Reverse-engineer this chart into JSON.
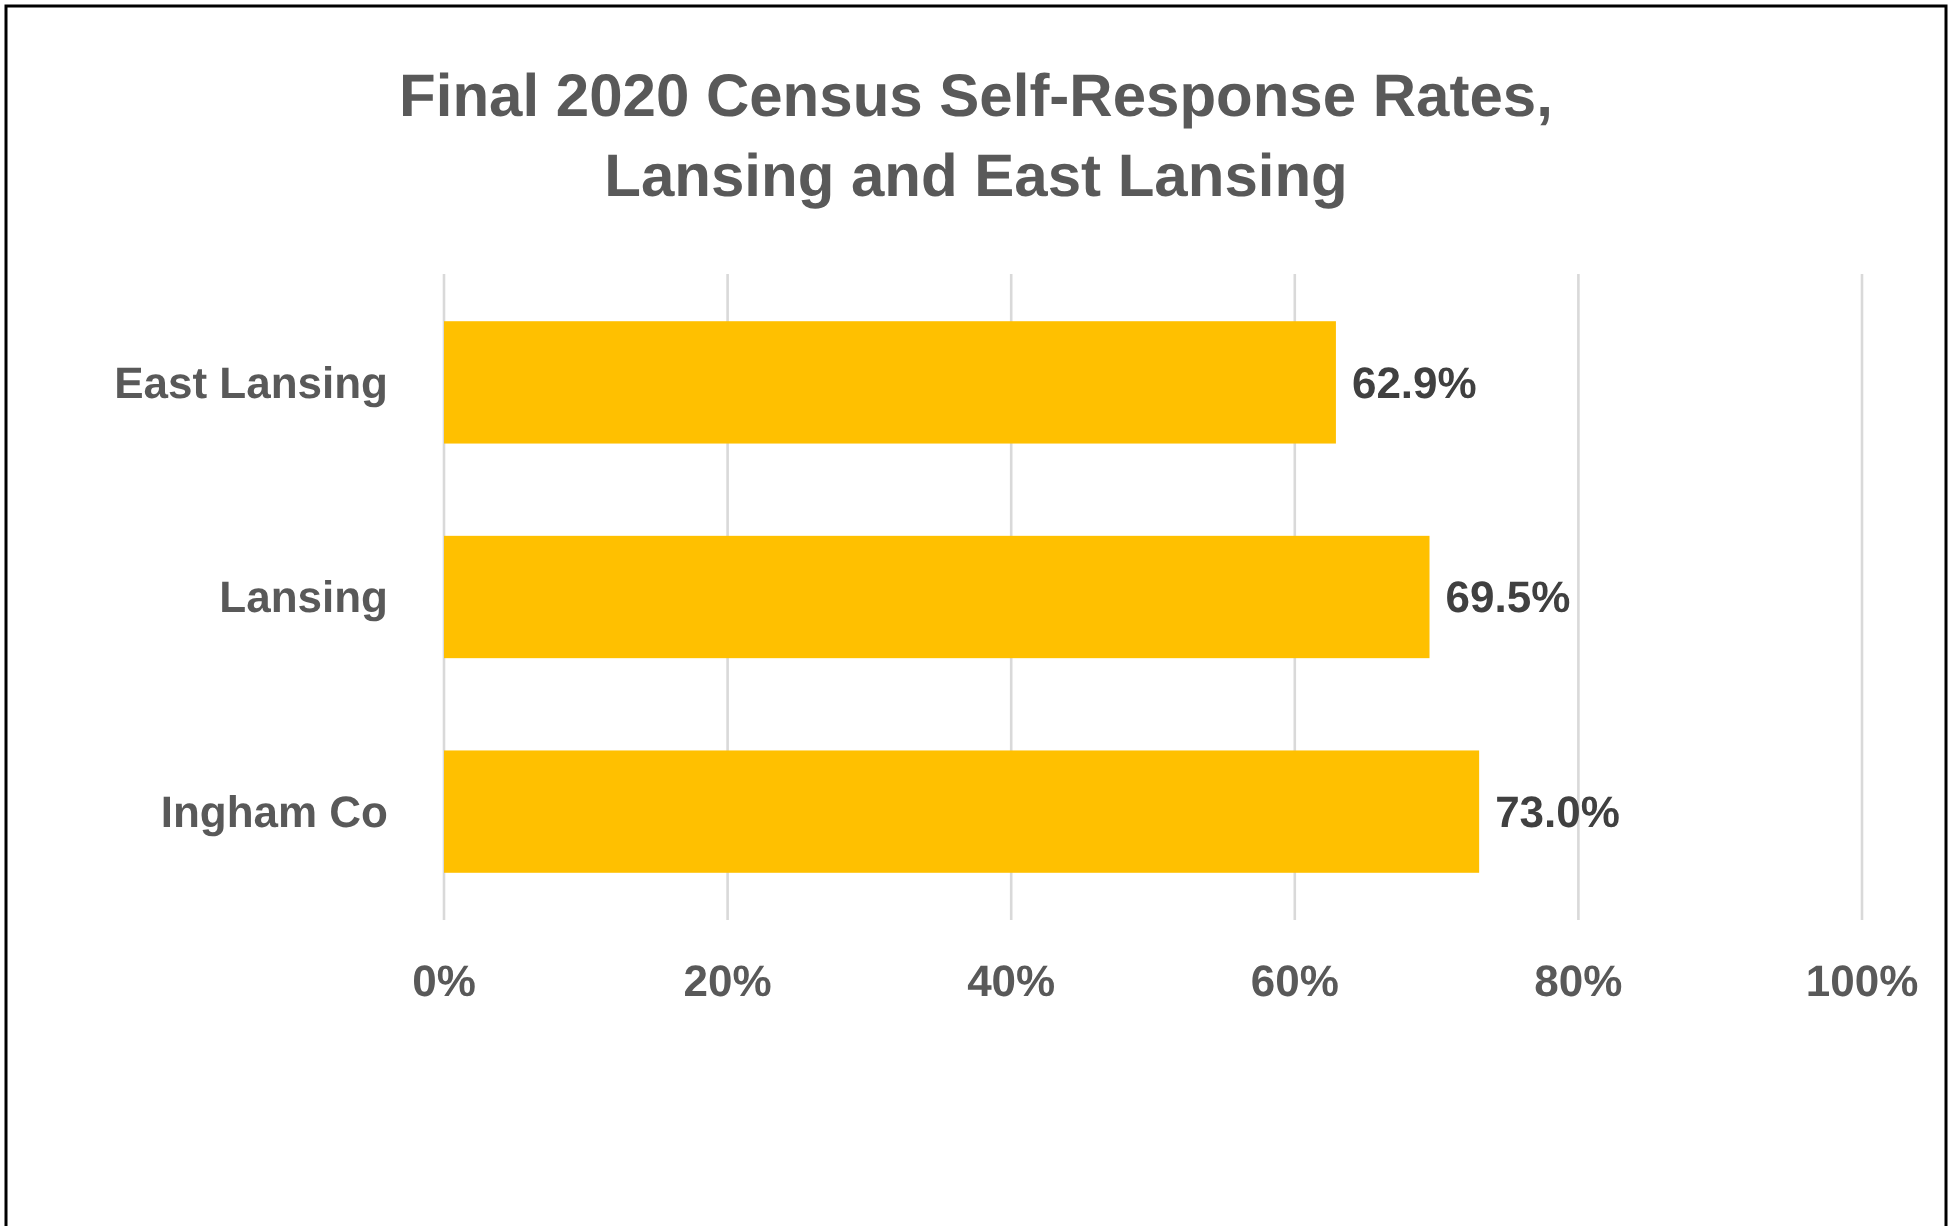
{
  "chart_data": {
    "type": "bar",
    "orientation": "horizontal",
    "title": "Final 2020 Census Self-Response Rates,\nLansing and East Lansing",
    "categories": [
      "East Lansing",
      "Lansing",
      "Ingham Co"
    ],
    "values": [
      62.9,
      69.5,
      73.0
    ],
    "value_labels": [
      "62.9%",
      "69.5%",
      "73.0%"
    ],
    "color": "#ffc000",
    "xlim": [
      0,
      100
    ],
    "xticks": [
      {
        "value": 0,
        "label": "0%"
      },
      {
        "value": 20,
        "label": "20%"
      },
      {
        "value": 40,
        "label": "40%"
      },
      {
        "value": 60,
        "label": "60%"
      },
      {
        "value": 80,
        "label": "80%"
      },
      {
        "value": 100,
        "label": "100%"
      }
    ],
    "grid": "x"
  }
}
